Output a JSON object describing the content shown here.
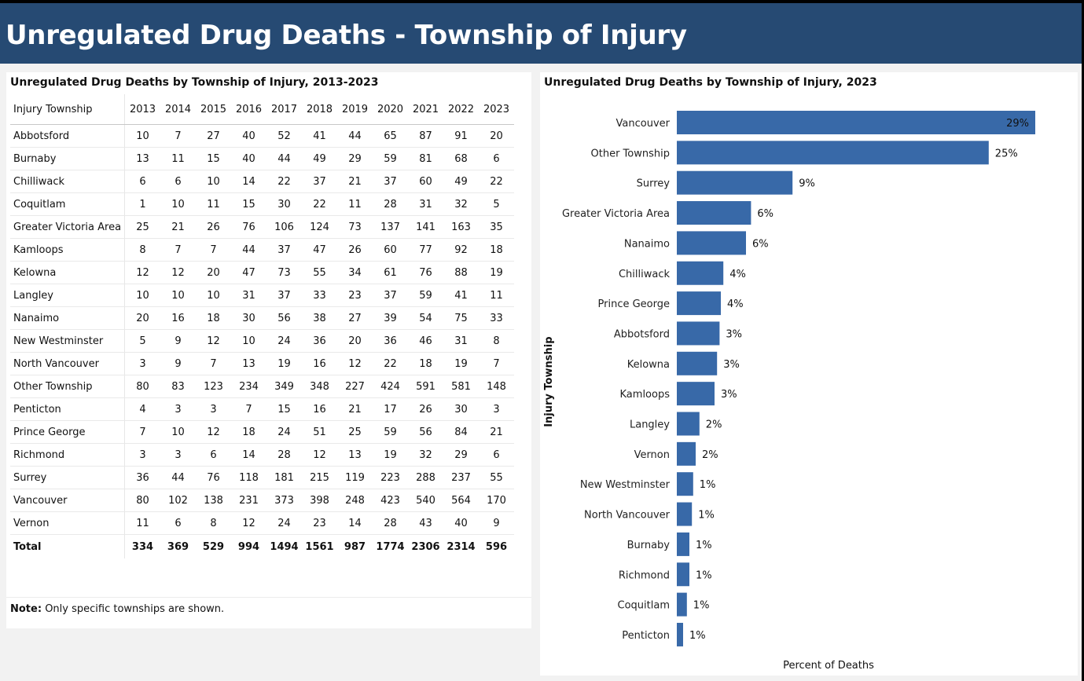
{
  "page": {
    "header_title": "Unregulated Drug Deaths - Township of Injury",
    "note_label": "Note:",
    "note_text": "Only specific townships are shown.",
    "header_color": "#264a73",
    "bar_color": "#3869a8"
  },
  "table": {
    "title": "Unregulated Drug Deaths by Township of Injury, 2013-2023",
    "first_header": "Injury Township",
    "years": [
      "2013",
      "2014",
      "2015",
      "2016",
      "2017",
      "2018",
      "2019",
      "2020",
      "2021",
      "2022",
      "2023"
    ],
    "rows": [
      {
        "name": "Abbotsford",
        "values": [
          10,
          7,
          27,
          40,
          52,
          41,
          44,
          65,
          87,
          91,
          20
        ]
      },
      {
        "name": "Burnaby",
        "values": [
          13,
          11,
          15,
          40,
          44,
          49,
          29,
          59,
          81,
          68,
          6
        ]
      },
      {
        "name": "Chilliwack",
        "values": [
          6,
          6,
          10,
          14,
          22,
          37,
          21,
          37,
          60,
          49,
          22
        ]
      },
      {
        "name": "Coquitlam",
        "values": [
          1,
          10,
          11,
          15,
          30,
          22,
          11,
          28,
          31,
          32,
          5
        ]
      },
      {
        "name": "Greater Victoria Area",
        "values": [
          25,
          21,
          26,
          76,
          106,
          124,
          73,
          137,
          141,
          163,
          35
        ]
      },
      {
        "name": "Kamloops",
        "values": [
          8,
          7,
          7,
          44,
          37,
          47,
          26,
          60,
          77,
          92,
          18
        ]
      },
      {
        "name": "Kelowna",
        "values": [
          12,
          12,
          20,
          47,
          73,
          55,
          34,
          61,
          76,
          88,
          19
        ]
      },
      {
        "name": "Langley",
        "values": [
          10,
          10,
          10,
          31,
          37,
          33,
          23,
          37,
          59,
          41,
          11
        ]
      },
      {
        "name": "Nanaimo",
        "values": [
          20,
          16,
          18,
          30,
          56,
          38,
          27,
          39,
          54,
          75,
          33
        ]
      },
      {
        "name": "New Westminster",
        "values": [
          5,
          9,
          12,
          10,
          24,
          36,
          20,
          36,
          46,
          31,
          8
        ]
      },
      {
        "name": "North Vancouver",
        "values": [
          3,
          9,
          7,
          13,
          19,
          16,
          12,
          22,
          18,
          19,
          7
        ]
      },
      {
        "name": "Other Township",
        "values": [
          80,
          83,
          123,
          234,
          349,
          348,
          227,
          424,
          591,
          581,
          148
        ]
      },
      {
        "name": "Penticton",
        "values": [
          4,
          3,
          3,
          7,
          15,
          16,
          21,
          17,
          26,
          30,
          3
        ]
      },
      {
        "name": "Prince George",
        "values": [
          7,
          10,
          12,
          18,
          24,
          51,
          25,
          59,
          56,
          84,
          21
        ]
      },
      {
        "name": "Richmond",
        "values": [
          3,
          3,
          6,
          14,
          28,
          12,
          13,
          19,
          32,
          29,
          6
        ]
      },
      {
        "name": "Surrey",
        "values": [
          36,
          44,
          76,
          118,
          181,
          215,
          119,
          223,
          288,
          237,
          55
        ]
      },
      {
        "name": "Vancouver",
        "values": [
          80,
          102,
          138,
          231,
          373,
          398,
          248,
          423,
          540,
          564,
          170
        ]
      },
      {
        "name": "Vernon",
        "values": [
          11,
          6,
          8,
          12,
          24,
          23,
          14,
          28,
          43,
          40,
          9
        ]
      }
    ],
    "total_label": "Total",
    "totals": [
      334,
      369,
      529,
      994,
      1494,
      1561,
      987,
      1774,
      2306,
      2314,
      596
    ]
  },
  "chart_data": {
    "type": "bar",
    "orientation": "horizontal",
    "title": "Unregulated Drug Deaths by Township of Injury, 2023",
    "xlabel": "Percent of Deaths",
    "ylabel": "Injury Township",
    "categories": [
      "Vancouver",
      "Other Township",
      "Surrey",
      "Greater Victoria Area",
      "Nanaimo",
      "Chilliwack",
      "Prince George",
      "Abbotsford",
      "Kelowna",
      "Kamloops",
      "Langley",
      "Vernon",
      "New Westminster",
      "North Vancouver",
      "Burnaby",
      "Richmond",
      "Coquitlam",
      "Penticton"
    ],
    "values": [
      28.5,
      24.8,
      9.2,
      5.9,
      5.5,
      3.7,
      3.5,
      3.4,
      3.2,
      3.0,
      1.8,
      1.5,
      1.3,
      1.2,
      1.0,
      1.0,
      0.8,
      0.5
    ],
    "labels": [
      "29%",
      "25%",
      "9%",
      "6%",
      "6%",
      "4%",
      "4%",
      "3%",
      "3%",
      "3%",
      "2%",
      "2%",
      "1%",
      "1%",
      "1%",
      "1%",
      "1%",
      "1%"
    ],
    "xlim": [
      0,
      30
    ],
    "grid": false,
    "legend": "none"
  }
}
